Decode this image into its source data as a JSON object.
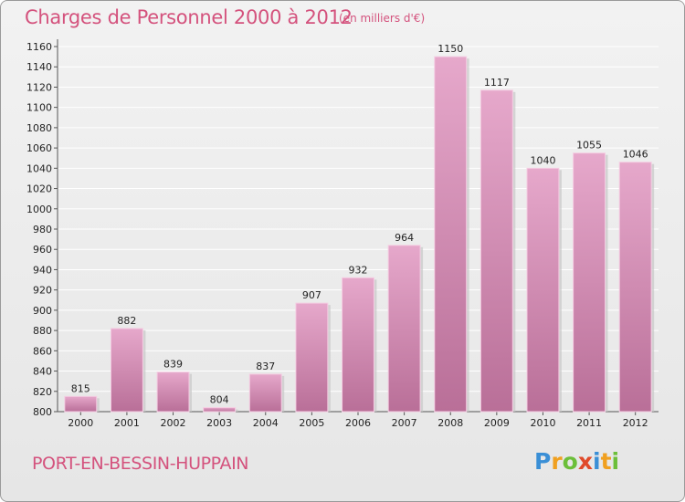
{
  "header": {
    "title": "Charges de Personnel 2000 à 2012",
    "subtitle": "(en milliers d'€)"
  },
  "footer": {
    "town": "PORT-EN-BESSIN-HUPPAIN",
    "logo": [
      {
        "char": "P",
        "color": "#3a8fd6"
      },
      {
        "char": "r",
        "color": "#f0a020"
      },
      {
        "char": "o",
        "color": "#6cbf3a"
      },
      {
        "char": "x",
        "color": "#e04a2a"
      },
      {
        "char": "i",
        "color": "#3a8fd6"
      },
      {
        "char": "t",
        "color": "#f0a020"
      },
      {
        "char": "i",
        "color": "#6cbf3a"
      }
    ]
  },
  "colors": {
    "bar": "#d98bb6",
    "bar_light": "#e6a8cb",
    "bar_dark": "#b96f98",
    "title": "#d4527d"
  },
  "chart_data": {
    "type": "bar",
    "categories": [
      "2000",
      "2001",
      "2002",
      "2003",
      "2004",
      "2005",
      "2006",
      "2007",
      "2008",
      "2009",
      "2010",
      "2011",
      "2012"
    ],
    "values": [
      815,
      882,
      839,
      804,
      837,
      907,
      932,
      964,
      1150,
      1117,
      1040,
      1055,
      1046
    ],
    "data_labels": [
      "815",
      "882",
      "839",
      "804",
      "837",
      "907",
      "932",
      "964",
      "1150",
      "1117",
      "1040",
      "1055",
      "1046"
    ],
    "yticks": [
      "800",
      "820",
      "840",
      "860",
      "880",
      "900",
      "920",
      "940",
      "960",
      "980",
      "1000",
      "1020",
      "1040",
      "1060",
      "1080",
      "1100",
      "1120",
      "1140",
      "1160"
    ],
    "ylim": [
      800,
      1160
    ],
    "grid": true,
    "legend": "none"
  }
}
